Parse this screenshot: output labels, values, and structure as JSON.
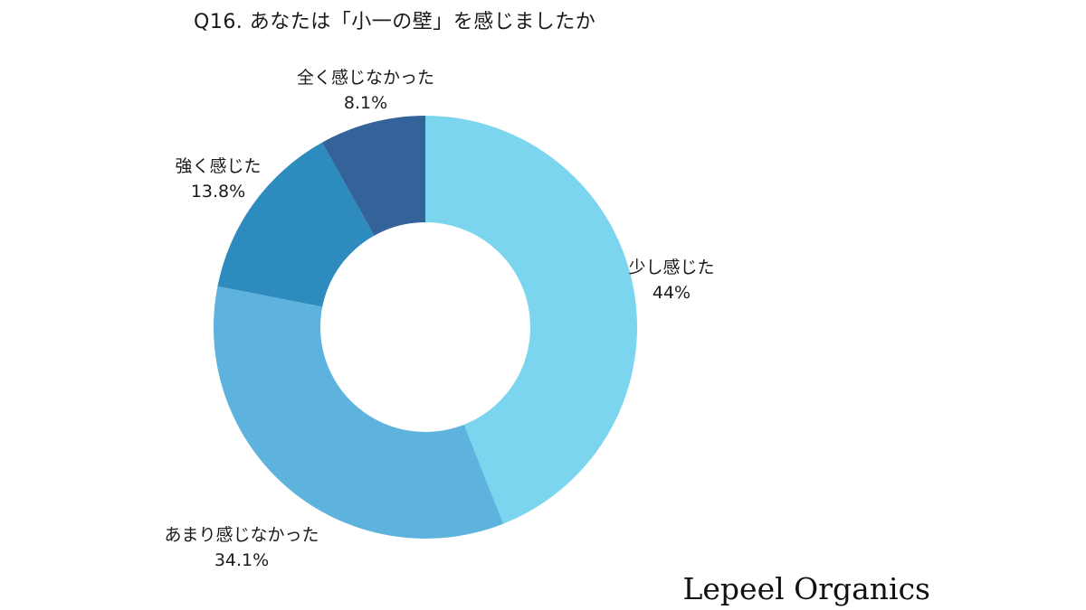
{
  "chart_data": {
    "type": "pie",
    "title": "Q16. あなたは「小一の壁」を感じましたか",
    "categories": [
      "少し感じた",
      "あまり感じなかった",
      "強く感じた",
      "全く感じなかった"
    ],
    "values": [
      44.0,
      34.1,
      13.8,
      8.1
    ],
    "value_labels": [
      "44%",
      "34.1%",
      "13.8%",
      "8.1%"
    ],
    "colors": [
      "#7cd5ef",
      "#5eb3de",
      "#2e8bbd",
      "#346399"
    ],
    "donut": true,
    "legend": "none"
  },
  "brand": {
    "name": "Lepeel Organics"
  }
}
